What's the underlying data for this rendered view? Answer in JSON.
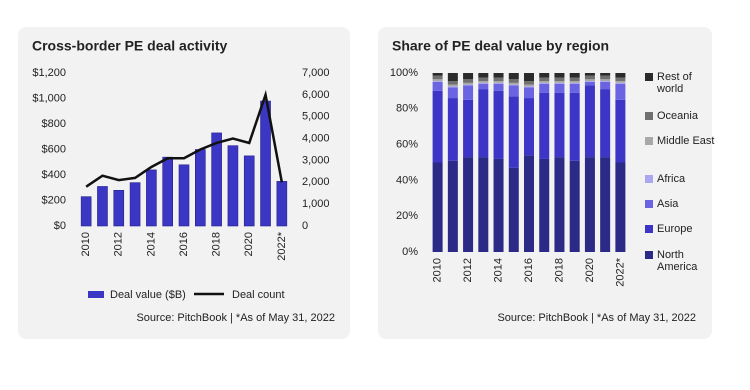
{
  "chart_data": [
    {
      "type": "combo",
      "title": "Cross-border PE deal activity",
      "source": "Source: PitchBook | *As of May 31, 2022",
      "categories": [
        "2010",
        null,
        "2012",
        null,
        "2014",
        null,
        "2016",
        null,
        "2018",
        null,
        "2020",
        null,
        "2022*"
      ],
      "series": [
        {
          "name": "Deal value ($B)",
          "type": "bar",
          "color": "#3b36c4",
          "values": [
            230,
            310,
            280,
            340,
            440,
            540,
            480,
            600,
            730,
            630,
            550,
            980,
            350
          ]
        },
        {
          "name": "Deal count",
          "type": "line",
          "axis": "y2",
          "color": "#111111",
          "values": [
            1800,
            2300,
            2100,
            2200,
            2700,
            3100,
            3100,
            3500,
            3800,
            4000,
            3800,
            6000,
            2000
          ]
        }
      ],
      "ylim": [
        0,
        1200
      ],
      "yticks": [
        {
          "value": 0,
          "label": "$0"
        },
        {
          "value": 200,
          "label": "$200"
        },
        {
          "value": 400,
          "label": "$400"
        },
        {
          "value": 600,
          "label": "$600"
        },
        {
          "value": 800,
          "label": "$800"
        },
        {
          "value": 1000,
          "label": "$1,000"
        },
        {
          "value": 1200,
          "label": "$1,200"
        }
      ],
      "y2lim": [
        0,
        7000
      ],
      "y2ticks": [
        0,
        {
          "value": 1000,
          "label": "1,000"
        },
        {
          "value": 2000,
          "label": "2,000"
        },
        {
          "value": 3000,
          "label": "3,000"
        },
        {
          "value": 4000,
          "label": "4,000"
        },
        {
          "value": 5000,
          "label": "5,000"
        },
        {
          "value": 6000,
          "label": "6,000"
        },
        {
          "value": 7000,
          "label": "7,000"
        }
      ],
      "legend": "bottom"
    },
    {
      "type": "stacked_bar",
      "title": "Share of PE deal value by region",
      "source": "Source: PitchBook | *As of May 31, 2022",
      "categories": [
        "2010",
        null,
        "2012",
        null,
        "2014",
        null,
        "2016",
        null,
        "2018",
        null,
        "2020",
        null,
        "2022*"
      ],
      "series": [
        {
          "name": "North America",
          "color": "#2b2a86",
          "values": [
            50,
            51,
            53,
            53,
            52,
            47,
            54,
            52,
            53,
            51,
            53,
            53,
            50
          ]
        },
        {
          "name": "Europe",
          "color": "#3c35c6",
          "values": [
            40,
            35,
            32,
            38,
            38,
            40,
            32,
            37,
            36,
            38,
            40,
            38,
            35
          ]
        },
        {
          "name": "Asia",
          "color": "#6b64e2",
          "values": [
            5,
            6,
            8,
            3,
            4,
            6,
            6,
            5,
            5,
            5,
            2,
            4,
            9
          ]
        },
        {
          "name": "Africa",
          "color": "#aaa6f2",
          "values": [
            0.5,
            0.5,
            0.5,
            0.5,
            0.5,
            0.5,
            0.5,
            0.5,
            0.5,
            0.5,
            0.5,
            0.5,
            0.5
          ]
        },
        {
          "name": "Middle East",
          "color": "#a8a8a8",
          "values": [
            1,
            1,
            1,
            1,
            1,
            1,
            1,
            1,
            1,
            1,
            1,
            1,
            1
          ]
        },
        {
          "name": "Oceania",
          "color": "#707070",
          "values": [
            2,
            2,
            2,
            2,
            2,
            2,
            2,
            2,
            2,
            2,
            2,
            2,
            2
          ]
        },
        {
          "name": "Rest of world",
          "color": "#2b2b2b",
          "values": [
            1.5,
            4.5,
            3.5,
            2.5,
            2.5,
            3.5,
            4.5,
            2.5,
            2.5,
            2.5,
            1.5,
            1.5,
            2.5
          ]
        }
      ],
      "ylim": [
        0,
        100
      ],
      "yticks": [
        {
          "value": 0,
          "label": "0%"
        },
        {
          "value": 20,
          "label": "20%"
        },
        {
          "value": 40,
          "label": "40%"
        },
        {
          "value": 60,
          "label": "60%"
        },
        {
          "value": 80,
          "label": "80%"
        },
        {
          "value": 100,
          "label": "100%"
        }
      ],
      "legend": "right"
    }
  ]
}
